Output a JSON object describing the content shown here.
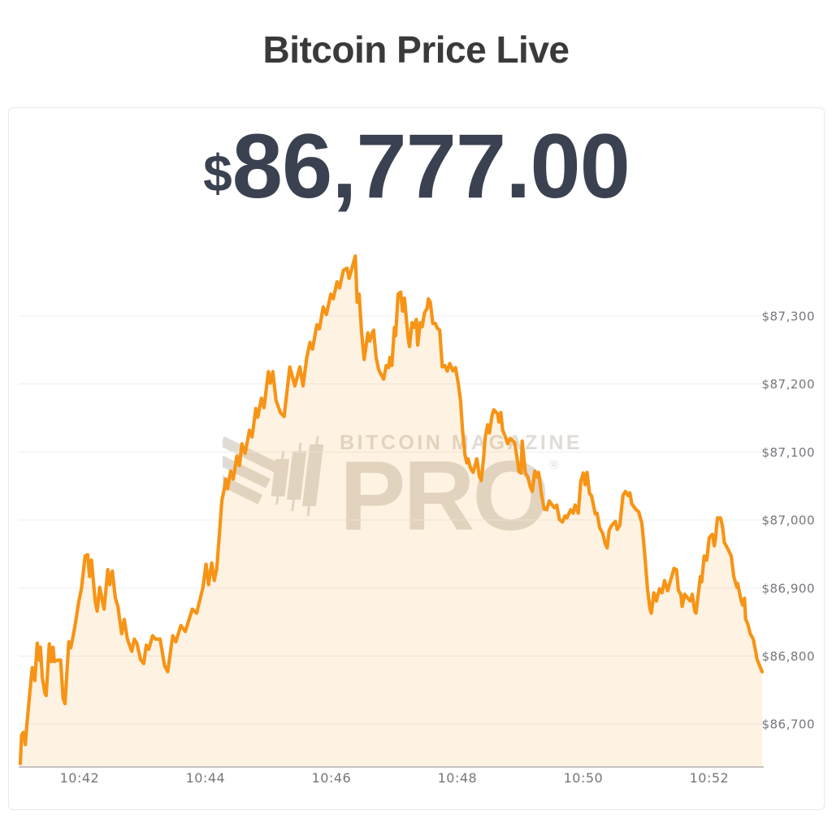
{
  "page": {
    "title": "Bitcoin Price Live"
  },
  "price_display": {
    "currency_symbol": "$",
    "value": "86,777.00"
  },
  "watermark": {
    "brand": "BITCOIN MAGAZINE",
    "product": "PRO",
    "registered": "®"
  },
  "theme": {
    "title_color": "#3a3a3a",
    "price_color": "#3a4150",
    "watermark_color": "#e0dcd5",
    "card_border": "#e9e9e9",
    "background": "#ffffff"
  },
  "chart_data": {
    "type": "area",
    "title": "Bitcoin Price Live",
    "xlabel": "",
    "ylabel": "",
    "x_unit": "minutes after 10:00 (time of day)",
    "grid": "horizontal",
    "legend": "none",
    "xlim_minutes": [
      41.06,
      52.84
    ],
    "ylim": [
      86637,
      87406
    ],
    "x_ticks": [
      {
        "value": 42,
        "label": "10:42"
      },
      {
        "value": 44,
        "label": "10:44"
      },
      {
        "value": 46,
        "label": "10:46"
      },
      {
        "value": 48,
        "label": "10:48"
      },
      {
        "value": 50,
        "label": "10:50"
      },
      {
        "value": 52,
        "label": "10:52"
      }
    ],
    "y_ticks": [
      {
        "value": 87300,
        "label": "$87,300"
      },
      {
        "value": 87200,
        "label": "$87,200"
      },
      {
        "value": 87100,
        "label": "$87,100"
      },
      {
        "value": 87000,
        "label": "$87,000"
      },
      {
        "value": 86900,
        "label": "$86,900"
      },
      {
        "value": 86800,
        "label": "$86,800"
      },
      {
        "value": 86700,
        "label": "$86,700"
      }
    ],
    "colors": {
      "line": "#F79415",
      "fill": "rgba(247,148,26,0.12)",
      "grid": "#ededed",
      "axis_line": "#a3a3a3",
      "tick_label": "#76767c"
    },
    "points": [
      [
        41.06,
        86642
      ],
      [
        41.08,
        86684
      ],
      [
        41.11,
        86688
      ],
      [
        41.14,
        86670
      ],
      [
        41.16,
        86696
      ],
      [
        41.2,
        86736
      ],
      [
        41.25,
        86783
      ],
      [
        41.29,
        86764
      ],
      [
        41.33,
        86819
      ],
      [
        41.36,
        86794
      ],
      [
        41.38,
        86813
      ],
      [
        41.41,
        86768
      ],
      [
        41.45,
        86746
      ],
      [
        41.47,
        86742
      ],
      [
        41.52,
        86818
      ],
      [
        41.55,
        86792
      ],
      [
        41.58,
        86813
      ],
      [
        41.6,
        86792
      ],
      [
        41.65,
        86794
      ],
      [
        41.7,
        86794
      ],
      [
        41.74,
        86738
      ],
      [
        41.77,
        86730
      ],
      [
        41.83,
        86821
      ],
      [
        41.86,
        86812
      ],
      [
        41.9,
        86830
      ],
      [
        41.93,
        86845
      ],
      [
        41.99,
        86881
      ],
      [
        42.03,
        86899
      ],
      [
        42.09,
        86947
      ],
      [
        42.13,
        86949
      ],
      [
        42.16,
        86917
      ],
      [
        42.19,
        86941
      ],
      [
        42.25,
        86881
      ],
      [
        42.28,
        86866
      ],
      [
        42.32,
        86901
      ],
      [
        42.39,
        86869
      ],
      [
        42.45,
        86927
      ],
      [
        42.48,
        86905
      ],
      [
        42.52,
        86925
      ],
      [
        42.57,
        86885
      ],
      [
        42.61,
        86873
      ],
      [
        42.67,
        86833
      ],
      [
        42.71,
        86854
      ],
      [
        42.76,
        86825
      ],
      [
        42.83,
        86807
      ],
      [
        42.87,
        86825
      ],
      [
        42.91,
        86819
      ],
      [
        42.97,
        86795
      ],
      [
        43.02,
        86789
      ],
      [
        43.06,
        86816
      ],
      [
        43.1,
        86810
      ],
      [
        43.16,
        86830
      ],
      [
        43.21,
        86825
      ],
      [
        43.28,
        86825
      ],
      [
        43.35,
        86786
      ],
      [
        43.4,
        86777
      ],
      [
        43.48,
        86830
      ],
      [
        43.53,
        86821
      ],
      [
        43.61,
        86845
      ],
      [
        43.68,
        86836
      ],
      [
        43.79,
        86869
      ],
      [
        43.86,
        86863
      ],
      [
        43.96,
        86901
      ],
      [
        44.01,
        86935
      ],
      [
        44.05,
        86905
      ],
      [
        44.1,
        86937
      ],
      [
        44.14,
        86911
      ],
      [
        44.18,
        86929
      ],
      [
        44.22,
        86977
      ],
      [
        44.26,
        87028
      ],
      [
        44.31,
        87051
      ],
      [
        44.32,
        87060
      ],
      [
        44.35,
        87046
      ],
      [
        44.4,
        87072
      ],
      [
        44.44,
        87060
      ],
      [
        44.5,
        87094
      ],
      [
        44.54,
        87080
      ],
      [
        44.58,
        87112
      ],
      [
        44.63,
        87098
      ],
      [
        44.7,
        87132
      ],
      [
        44.74,
        87122
      ],
      [
        44.8,
        87164
      ],
      [
        44.83,
        87151
      ],
      [
        44.89,
        87179
      ],
      [
        44.93,
        87165
      ],
      [
        45.0,
        87218
      ],
      [
        45.03,
        87201
      ],
      [
        45.07,
        87218
      ],
      [
        45.12,
        87176
      ],
      [
        45.19,
        87158
      ],
      [
        45.25,
        87152
      ],
      [
        45.34,
        87225
      ],
      [
        45.42,
        87197
      ],
      [
        45.5,
        87225
      ],
      [
        45.55,
        87197
      ],
      [
        45.61,
        87239
      ],
      [
        45.66,
        87261
      ],
      [
        45.7,
        87251
      ],
      [
        45.77,
        87287
      ],
      [
        45.81,
        87281
      ],
      [
        45.87,
        87313
      ],
      [
        45.92,
        87302
      ],
      [
        45.99,
        87332
      ],
      [
        46.03,
        87325
      ],
      [
        46.09,
        87350
      ],
      [
        46.13,
        87341
      ],
      [
        46.19,
        87367
      ],
      [
        46.25,
        87370
      ],
      [
        46.28,
        87355
      ],
      [
        46.32,
        87368
      ],
      [
        46.38,
        87388
      ],
      [
        46.41,
        87320
      ],
      [
        46.44,
        87332
      ],
      [
        46.48,
        87275
      ],
      [
        46.52,
        87236
      ],
      [
        46.58,
        87275
      ],
      [
        46.61,
        87263
      ],
      [
        46.65,
        87275
      ],
      [
        46.67,
        87279
      ],
      [
        46.71,
        87239
      ],
      [
        46.75,
        87221
      ],
      [
        46.8,
        87212
      ],
      [
        46.83,
        87207
      ],
      [
        46.87,
        87227
      ],
      [
        46.91,
        87224
      ],
      [
        46.93,
        87239
      ],
      [
        46.96,
        87227
      ],
      [
        47.0,
        87283
      ],
      [
        47.02,
        87271
      ],
      [
        47.06,
        87332
      ],
      [
        47.1,
        87335
      ],
      [
        47.13,
        87307
      ],
      [
        47.16,
        87326
      ],
      [
        47.22,
        87267
      ],
      [
        47.24,
        87255
      ],
      [
        47.28,
        87290
      ],
      [
        47.31,
        87283
      ],
      [
        47.35,
        87295
      ],
      [
        47.37,
        87257
      ],
      [
        47.41,
        87290
      ],
      [
        47.44,
        87284
      ],
      [
        47.48,
        87305
      ],
      [
        47.52,
        87311
      ],
      [
        47.54,
        87325
      ],
      [
        47.57,
        87320
      ],
      [
        47.61,
        87289
      ],
      [
        47.65,
        87289
      ],
      [
        47.68,
        87282
      ],
      [
        47.72,
        87279
      ],
      [
        47.76,
        87225
      ],
      [
        47.8,
        87227
      ],
      [
        47.84,
        87219
      ],
      [
        47.88,
        87230
      ],
      [
        47.93,
        87219
      ],
      [
        47.97,
        87224
      ],
      [
        48.01,
        87203
      ],
      [
        48.05,
        87176
      ],
      [
        48.08,
        87135
      ],
      [
        48.12,
        87096
      ],
      [
        48.15,
        87084
      ],
      [
        48.17,
        87090
      ],
      [
        48.21,
        87076
      ],
      [
        48.25,
        87070
      ],
      [
        48.28,
        87080
      ],
      [
        48.31,
        87090
      ],
      [
        48.35,
        87064
      ],
      [
        48.38,
        87058
      ],
      [
        48.42,
        87094
      ],
      [
        48.44,
        87120
      ],
      [
        48.48,
        87140
      ],
      [
        48.51,
        87128
      ],
      [
        48.55,
        87153
      ],
      [
        48.58,
        87162
      ],
      [
        48.64,
        87156
      ],
      [
        48.66,
        87144
      ],
      [
        48.69,
        87158
      ],
      [
        48.72,
        87132
      ],
      [
        48.76,
        87123
      ],
      [
        48.8,
        87112
      ],
      [
        48.84,
        87120
      ],
      [
        48.91,
        87114
      ],
      [
        48.96,
        87084
      ],
      [
        48.98,
        87071
      ],
      [
        49.01,
        87069
      ],
      [
        49.03,
        87116
      ],
      [
        49.08,
        87069
      ],
      [
        49.12,
        87063
      ],
      [
        49.16,
        87048
      ],
      [
        49.19,
        87042
      ],
      [
        49.23,
        87072
      ],
      [
        49.27,
        87063
      ],
      [
        49.29,
        87070
      ],
      [
        49.34,
        87036
      ],
      [
        49.38,
        87016
      ],
      [
        49.42,
        87015
      ],
      [
        49.46,
        87028
      ],
      [
        49.49,
        87024
      ],
      [
        49.54,
        87018
      ],
      [
        49.58,
        87022
      ],
      [
        49.62,
        87001
      ],
      [
        49.67,
        86997
      ],
      [
        49.71,
        87006
      ],
      [
        49.74,
        87003
      ],
      [
        49.8,
        87015
      ],
      [
        49.84,
        87010
      ],
      [
        49.87,
        87022
      ],
      [
        49.92,
        87010
      ],
      [
        49.96,
        87057
      ],
      [
        50.0,
        87069
      ],
      [
        50.03,
        87052
      ],
      [
        50.06,
        87070
      ],
      [
        50.1,
        87039
      ],
      [
        50.13,
        87036
      ],
      [
        50.19,
        87009
      ],
      [
        50.22,
        87010
      ],
      [
        50.26,
        86989
      ],
      [
        50.31,
        86980
      ],
      [
        50.35,
        86965
      ],
      [
        50.38,
        86959
      ],
      [
        50.41,
        86985
      ],
      [
        50.45,
        86992
      ],
      [
        50.51,
        86998
      ],
      [
        50.54,
        86986
      ],
      [
        50.58,
        86992
      ],
      [
        50.63,
        87036
      ],
      [
        50.67,
        87042
      ],
      [
        50.71,
        87036
      ],
      [
        50.74,
        87040
      ],
      [
        50.77,
        87024
      ],
      [
        50.83,
        87016
      ],
      [
        50.88,
        87012
      ],
      [
        50.93,
        86995
      ],
      [
        50.97,
        86956
      ],
      [
        51.02,
        86899
      ],
      [
        51.06,
        86869
      ],
      [
        51.08,
        86863
      ],
      [
        51.12,
        86893
      ],
      [
        51.16,
        86881
      ],
      [
        51.21,
        86899
      ],
      [
        51.25,
        86893
      ],
      [
        51.29,
        86911
      ],
      [
        51.34,
        86896
      ],
      [
        51.41,
        86919
      ],
      [
        51.44,
        86929
      ],
      [
        51.48,
        86927
      ],
      [
        51.51,
        86897
      ],
      [
        51.55,
        86890
      ],
      [
        51.57,
        86873
      ],
      [
        51.61,
        86891
      ],
      [
        51.66,
        86885
      ],
      [
        51.7,
        86881
      ],
      [
        51.73,
        86891
      ],
      [
        51.77,
        86866
      ],
      [
        51.79,
        86863
      ],
      [
        51.86,
        86917
      ],
      [
        51.88,
        86909
      ],
      [
        51.92,
        86947
      ],
      [
        51.96,
        86941
      ],
      [
        52.0,
        86974
      ],
      [
        52.05,
        86979
      ],
      [
        52.08,
        86962
      ],
      [
        52.1,
        86973
      ],
      [
        52.13,
        87003
      ],
      [
        52.18,
        87003
      ],
      [
        52.21,
        86991
      ],
      [
        52.24,
        86967
      ],
      [
        52.27,
        86962
      ],
      [
        52.31,
        86955
      ],
      [
        52.35,
        86947
      ],
      [
        52.39,
        86917
      ],
      [
        52.44,
        86901
      ],
      [
        52.45,
        86907
      ],
      [
        52.51,
        86881
      ],
      [
        52.53,
        86875
      ],
      [
        52.56,
        86885
      ],
      [
        52.58,
        86854
      ],
      [
        52.61,
        86848
      ],
      [
        52.65,
        86833
      ],
      [
        52.7,
        86825
      ],
      [
        52.74,
        86806
      ],
      [
        52.76,
        86795
      ],
      [
        52.8,
        86786
      ],
      [
        52.84,
        86777
      ]
    ]
  }
}
